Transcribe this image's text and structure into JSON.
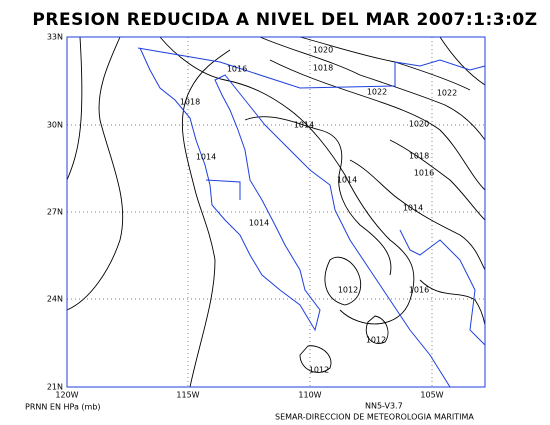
{
  "title": "PRESION REDUCIDA A NIVEL DEL MAR 2007:1:3:0Z",
  "map": {
    "lat_labels": [
      "33N",
      "30N",
      "27N",
      "24N",
      "21N"
    ],
    "lon_labels": [
      "120W",
      "115W",
      "110W",
      "105W"
    ],
    "contour_labels": [
      "1020",
      "1018",
      "1016",
      "1022",
      "1022",
      "1018",
      "1014",
      "1020",
      "1014",
      "1018",
      "1016",
      "1014",
      "1014",
      "1014",
      "1012",
      "1016",
      "1012",
      "1012"
    ]
  },
  "footer": {
    "variable": "PRNN EN HPa (mb)",
    "version": "NN5-V3.7",
    "credit": "SEMAR-DIRECCION DE METEOROLOGIA MARITIMA"
  }
}
